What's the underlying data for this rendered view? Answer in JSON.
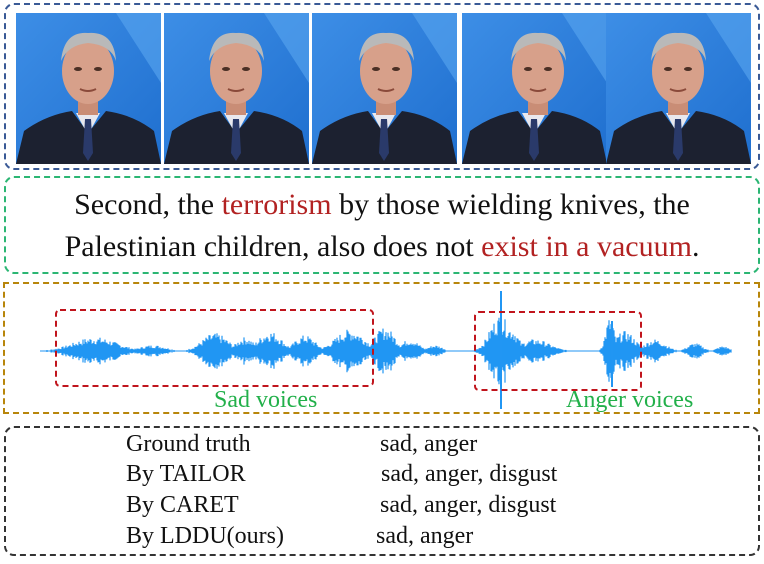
{
  "transcript": {
    "parts": [
      {
        "text": "Second, the ",
        "highlight": false
      },
      {
        "text": "terrorism",
        "highlight": true
      },
      {
        "text": " by those wielding knives, the",
        "highlight": false
      },
      {
        "br": true
      },
      {
        "text": "Palestinian children, also does not ",
        "highlight": false
      },
      {
        "text": "exist in a vacuum",
        "highlight": true
      },
      {
        "text": ".",
        "highlight": false
      }
    ]
  },
  "audio": {
    "sad_label": "Sad voices",
    "anger_label": "Anger voices"
  },
  "results": [
    {
      "method": "Ground truth",
      "labels": "sad, anger"
    },
    {
      "method": "By TAILOR",
      "labels": "sad, anger, disgust"
    },
    {
      "method": "By CARET",
      "labels": "sad, anger, disgust"
    },
    {
      "method": "By LDDU(ours)",
      "labels": "sad, anger"
    }
  ],
  "colors": {
    "highlight": "#b22222",
    "voice_label": "#22b04a",
    "waveform": "#2196f3",
    "region_box": "#c0141c"
  }
}
